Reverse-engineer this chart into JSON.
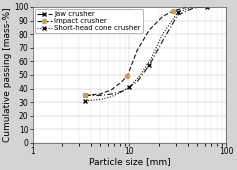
{
  "title": "",
  "xlabel": "Particle size [mm]",
  "ylabel": "Cumulative passing [mass-%]",
  "xlim": [
    1,
    100
  ],
  "ylim": [
    0,
    100
  ],
  "background_color": "#d4d4d4",
  "plot_background": "#ffffff",
  "jaw_crusher": {
    "x": [
      3.5,
      5.0,
      6.5,
      8.5,
      12.0,
      16.0,
      22.0,
      31.5,
      45.0,
      56.0,
      63.0
    ],
    "y": [
      35,
      35,
      36,
      38,
      45,
      57,
      75,
      94,
      99,
      100,
      100
    ],
    "label": "Jaw crusher",
    "color": "#111111",
    "marker": "x",
    "markersize": 3
  },
  "impact_crusher": {
    "x": [
      3.5,
      5.0,
      6.5,
      8.0,
      9.5,
      12.0,
      16.0,
      22.0,
      28.0,
      40.0,
      56.0
    ],
    "y": [
      35,
      36,
      39,
      44,
      49,
      68,
      83,
      93,
      97,
      100,
      100
    ],
    "label": "Impact crusher",
    "color": "#111111",
    "marker": "o",
    "markersize": 3
  },
  "shcone_crusher": {
    "x": [
      3.5,
      5.0,
      6.5,
      8.0,
      10.0,
      13.0,
      17.0,
      22.0,
      31.5,
      45.0,
      63.0
    ],
    "y": [
      31,
      32,
      34,
      37,
      41,
      50,
      63,
      80,
      96,
      100,
      100
    ],
    "label": "Short-head cone crusher",
    "color": "#111111",
    "marker": "x",
    "markersize": 3
  },
  "xticks": [
    1,
    10,
    100
  ],
  "yticks": [
    0,
    10,
    20,
    30,
    40,
    50,
    60,
    70,
    80,
    90,
    100
  ],
  "legend_fontsize": 5.0,
  "tick_fontsize": 5.5,
  "label_fontsize": 6.5
}
